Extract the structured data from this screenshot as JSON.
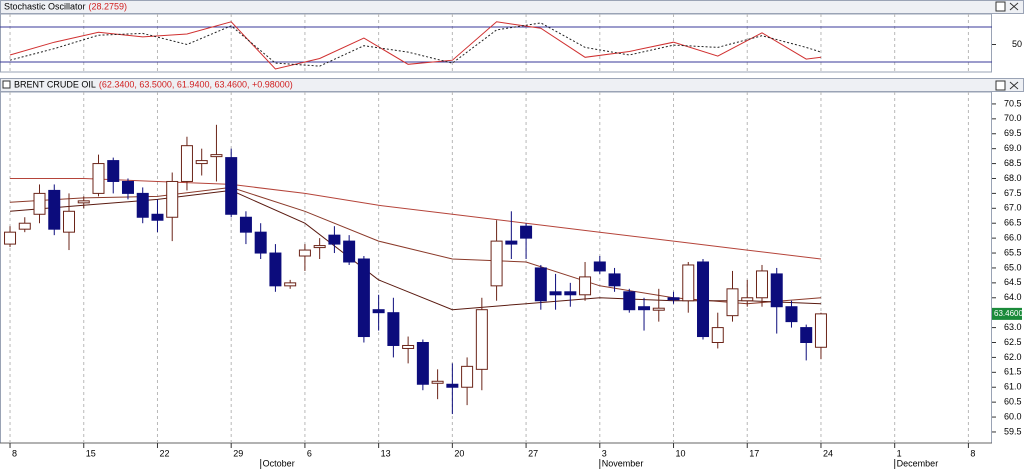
{
  "chart_data": [
    {
      "type": "line",
      "title": "Stochastic Oscillator",
      "value_label": "(28.2759)",
      "x": [
        0,
        3,
        6,
        9,
        12,
        15,
        18,
        21,
        24,
        27,
        30,
        33,
        36,
        39,
        42,
        45,
        48,
        51,
        54,
        55
      ],
      "series": [
        {
          "name": "%K",
          "color": "#d03030",
          "dash": false,
          "values": [
            32,
            54,
            71,
            63,
            68,
            89,
            8,
            26,
            61,
            16,
            23,
            89,
            78,
            28,
            38,
            54,
            30,
            70,
            25,
            28
          ]
        },
        {
          "name": "%D",
          "color": "#222222",
          "dash": true,
          "values": [
            23,
            43,
            66,
            69,
            50,
            82,
            18,
            13,
            48,
            37,
            18,
            75,
            87,
            45,
            32,
            49,
            45,
            65,
            45,
            37
          ]
        }
      ],
      "hlines": [
        20,
        80
      ],
      "ylim": [
        2.8,
        102.3
      ],
      "yticks": [
        50
      ],
      "xlim": [
        -0.68,
        66.6
      ],
      "xticks": [
        0,
        5,
        10,
        15,
        20,
        25,
        30,
        35,
        40,
        45,
        50,
        55,
        60,
        65
      ]
    },
    {
      "type": "candlestick",
      "title": "BRENT CRUDE OIL",
      "value_label": "(62.3400, 63.5000, 61.9400, 63.4600, +0.98000)",
      "last_price_label": "63.4600",
      "open": [
        65.8,
        66.3,
        66.8,
        67.6,
        66.2,
        67.2,
        67.5,
        68.6,
        67.9,
        67.5,
        66.8,
        66.7,
        67.9,
        68.5,
        68.8,
        68.7,
        66.7,
        66.2,
        65.5,
        64.4,
        65.4,
        65.7,
        66.1,
        65.9,
        65.3,
        63.6,
        63.5,
        62.3,
        62.5,
        61.2,
        61.1,
        61.0,
        61.6,
        64.4,
        65.9,
        66.4,
        65.0,
        64.2,
        64.2,
        64.1,
        65.2,
        64.8,
        64.2,
        63.7,
        63.6,
        64.0,
        63.9,
        65.2,
        62.5,
        63.4,
        63.9,
        64.0,
        64.8,
        63.7,
        63.0,
        62.34
      ],
      "high": [
        66.4,
        66.7,
        67.8,
        67.8,
        67.5,
        67.4,
        68.8,
        68.7,
        68.0,
        67.7,
        67.3,
        68.2,
        69.4,
        69.0,
        69.8,
        69.0,
        66.9,
        66.5,
        65.8,
        64.6,
        65.8,
        66.0,
        66.4,
        66.1,
        65.4,
        64.1,
        64.0,
        62.7,
        62.6,
        61.6,
        61.8,
        62.0,
        64.0,
        66.6,
        66.9,
        66.5,
        65.1,
        64.8,
        64.5,
        65.2,
        65.4,
        65.0,
        64.3,
        64.0,
        64.3,
        64.2,
        65.2,
        65.3,
        63.5,
        64.9,
        64.6,
        65.1,
        65.0,
        63.9,
        63.1,
        63.5
      ],
      "low": [
        65.7,
        66.2,
        66.5,
        66.1,
        65.6,
        67.0,
        67.4,
        67.5,
        67.3,
        66.5,
        66.2,
        65.9,
        67.6,
        68.1,
        67.9,
        66.7,
        65.8,
        65.3,
        64.2,
        64.3,
        64.9,
        65.3,
        65.5,
        65.1,
        62.5,
        62.9,
        62.0,
        61.8,
        60.9,
        60.6,
        60.1,
        60.4,
        60.9,
        63.9,
        65.3,
        65.3,
        63.6,
        63.6,
        63.7,
        63.9,
        64.8,
        64.2,
        63.5,
        62.9,
        63.2,
        63.8,
        63.5,
        62.6,
        62.3,
        63.2,
        63.7,
        63.7,
        62.8,
        63.0,
        61.9,
        61.94
      ],
      "close": [
        66.2,
        66.5,
        67.5,
        66.3,
        66.9,
        67.25,
        68.5,
        67.9,
        67.5,
        66.7,
        66.6,
        67.9,
        69.1,
        68.6,
        68.8,
        66.8,
        66.2,
        65.5,
        64.4,
        64.5,
        65.6,
        65.75,
        65.8,
        65.2,
        62.7,
        63.5,
        62.4,
        62.4,
        61.1,
        61.2,
        61.0,
        61.7,
        63.6,
        65.9,
        65.8,
        66.0,
        63.9,
        64.1,
        64.1,
        64.7,
        64.9,
        64.4,
        63.6,
        63.6,
        63.65,
        63.95,
        65.1,
        62.7,
        63.0,
        64.3,
        64.0,
        64.9,
        63.7,
        63.2,
        62.5,
        63.46
      ],
      "up_color": "#ffffff",
      "up_edge": "#6b2418",
      "down_color": "#0c0c7c",
      "ma_x": [
        0,
        5,
        10,
        15,
        20,
        25,
        30,
        35,
        40,
        45,
        50,
        55
      ],
      "series": [
        {
          "name": "MA long",
          "color": "#b5443a",
          "values": [
            68.0,
            68.0,
            67.9,
            67.8,
            67.5,
            67.1,
            66.8,
            66.5,
            66.2,
            65.9,
            65.6,
            65.3
          ]
        },
        {
          "name": "MA medium",
          "color": "#8b3a2a",
          "values": [
            67.2,
            67.35,
            67.4,
            67.7,
            66.9,
            65.9,
            65.3,
            65.2,
            64.4,
            64.0,
            63.8,
            64.0
          ]
        },
        {
          "name": "MA short",
          "color": "#5a1a10",
          "values": [
            66.9,
            67.1,
            67.3,
            67.6,
            66.5,
            64.6,
            63.6,
            63.8,
            64.0,
            63.9,
            63.9,
            63.8
          ]
        }
      ],
      "ylim": [
        59.13,
        70.9
      ],
      "yticks": [
        {
          "value": 59.5,
          "label": "59.5"
        },
        {
          "value": 60,
          "label": "60.0"
        },
        {
          "value": 60.5,
          "label": "60.5"
        },
        {
          "value": 61,
          "label": "61.0"
        },
        {
          "value": 61.5,
          "label": "61.5"
        },
        {
          "value": 62,
          "label": "62.0"
        },
        {
          "value": 62.5,
          "label": "62.5"
        },
        {
          "value": 63,
          "label": "63.0"
        },
        {
          "value": 63.5,
          "label": "63.5"
        },
        {
          "value": 64,
          "label": "64.0"
        },
        {
          "value": 64.5,
          "label": "64.5"
        },
        {
          "value": 65,
          "label": "65.0"
        },
        {
          "value": 65.5,
          "label": "65.5"
        },
        {
          "value": 66,
          "label": "66.0"
        },
        {
          "value": 66.5,
          "label": "66.5"
        },
        {
          "value": 67,
          "label": "67.0"
        },
        {
          "value": 67.5,
          "label": "67.5"
        },
        {
          "value": 68,
          "label": "68.0"
        },
        {
          "value": 68.5,
          "label": "68.5"
        },
        {
          "value": 69,
          "label": "69.0"
        },
        {
          "value": 69.5,
          "label": "69.5"
        },
        {
          "value": 70,
          "label": "70.0"
        },
        {
          "value": 70.5,
          "label": "70.5"
        }
      ],
      "xlim": [
        -0.68,
        66.6
      ],
      "xticks": [
        {
          "value": 0,
          "label": "8"
        },
        {
          "value": 5,
          "label": "15"
        },
        {
          "value": 10,
          "label": "22"
        },
        {
          "value": 15,
          "label": "29"
        },
        {
          "value": 20,
          "label": "6"
        },
        {
          "value": 25,
          "label": "13"
        },
        {
          "value": 30,
          "label": "20"
        },
        {
          "value": 35,
          "label": "27"
        },
        {
          "value": 40,
          "label": "3"
        },
        {
          "value": 45,
          "label": "10"
        },
        {
          "value": 50,
          "label": "17"
        },
        {
          "value": 55,
          "label": "24"
        },
        {
          "value": 60,
          "label": "1"
        },
        {
          "value": 65,
          "label": "8"
        }
      ],
      "month_ticks": [
        {
          "value": 17,
          "label": "October"
        },
        {
          "value": 40,
          "label": "November"
        },
        {
          "value": 60,
          "label": "December"
        }
      ]
    }
  ]
}
